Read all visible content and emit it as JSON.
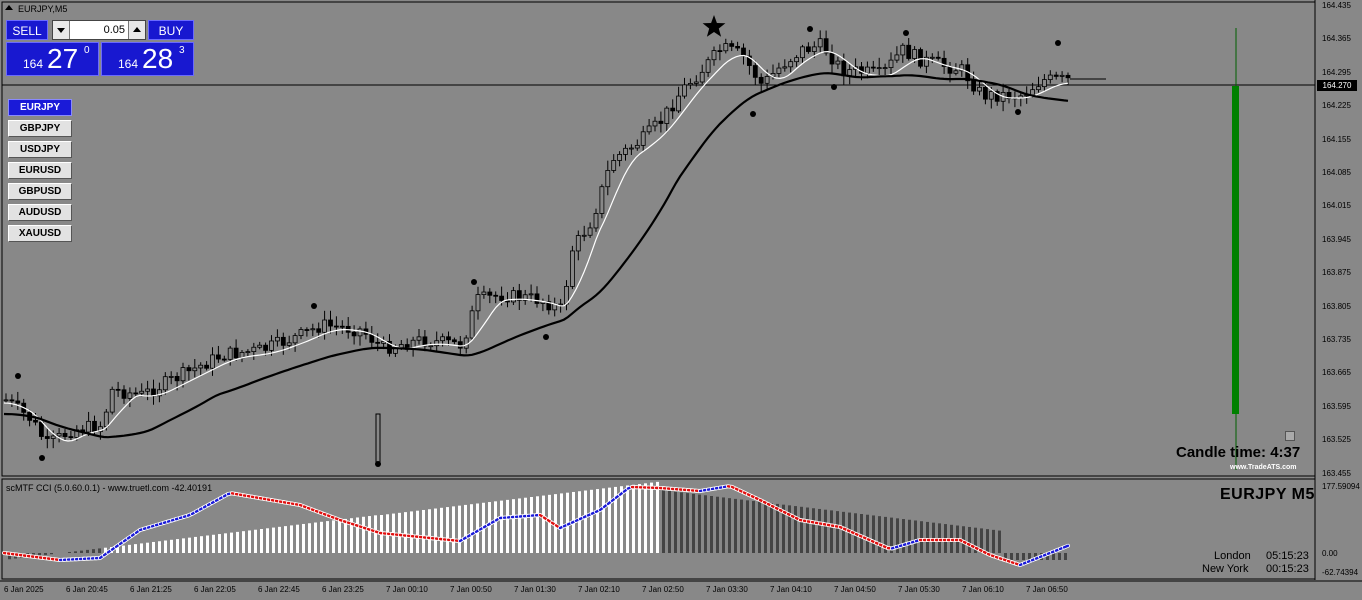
{
  "window": {
    "title": "EURJPY,M5"
  },
  "trade_panel": {
    "sell_label": "SELL",
    "buy_label": "BUY",
    "lot_value": "0.05",
    "bid_prefix": "164",
    "bid_big": "27",
    "bid_sup": "0",
    "ask_prefix": "164",
    "ask_big": "28",
    "ask_sup": "3"
  },
  "symbols": [
    "EURJPY",
    "GBPJPY",
    "USDJPY",
    "EURUSD",
    "GBPUSD",
    "AUDUSD",
    "XAUUSD"
  ],
  "active_symbol": "EURJPY",
  "price_axis": {
    "labels": [
      "164.435",
      "164.365",
      "164.295",
      "164.225",
      "164.155",
      "164.085",
      "164.015",
      "163.945",
      "163.875",
      "163.805",
      "163.735",
      "163.665",
      "163.595",
      "163.525",
      "163.455"
    ],
    "current": "164.270"
  },
  "time_axis": [
    "6 Jan 2025",
    "6 Jan 20:45",
    "6 Jan 21:25",
    "6 Jan 22:05",
    "6 Jan 22:45",
    "6 Jan 23:25",
    "7 Jan 00:10",
    "7 Jan 00:50",
    "7 Jan 01:30",
    "7 Jan 02:10",
    "7 Jan 02:50",
    "7 Jan 03:30",
    "7 Jan 04:10",
    "7 Jan 04:50",
    "7 Jan 05:30",
    "7 Jan 06:10",
    "7 Jan 06:50"
  ],
  "candle_timer": {
    "label": "Candle time:",
    "value": "4:37"
  },
  "brand": "www.TradeATS.com",
  "indicator": {
    "title": "scMTF CCI (5.0.60.0.1) - www.truetl.com -42.40191",
    "axis_labels": [
      "177.59094",
      "0.00",
      "-62.74394"
    ],
    "symbol_tf": "EURJPY  M5"
  },
  "sessions": [
    {
      "city": "London",
      "time": "05:15:23"
    },
    {
      "city": "New York",
      "time": "00:15:23"
    }
  ],
  "colors": {
    "background": "#888888",
    "bull_candle": "#888888",
    "bear_candle": "#000000",
    "ma_fast": "#ffffff",
    "ma_slow": "#000000",
    "cci_up": "#1a1ad8",
    "cci_down": "#e01010",
    "volume_bar": "#008000",
    "panel_blue": "#1818d0"
  },
  "icons": {
    "star": "star-marker-icon",
    "fractal": "fractal-dot-icon"
  }
}
